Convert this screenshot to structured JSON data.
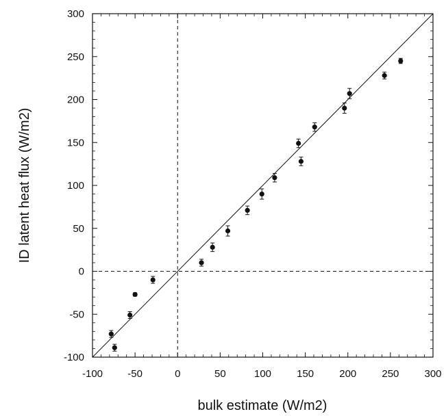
{
  "chart_data": {
    "type": "scatter",
    "title": "",
    "xlabel": "bulk estimate (W/m2)",
    "ylabel": "ID latent heat flux (W/m2)",
    "xlim": [
      -100,
      300
    ],
    "ylim": [
      -100,
      300
    ],
    "x_ticks": [
      -100,
      -50,
      0,
      50,
      100,
      150,
      200,
      250,
      300
    ],
    "y_ticks": [
      -100,
      -50,
      0,
      50,
      100,
      150,
      200,
      250,
      300
    ],
    "x_tick_labels": [
      "-100",
      "-50",
      "0",
      "50",
      "100",
      "150",
      "200",
      "250",
      "300"
    ],
    "y_tick_labels": [
      "-100",
      "-50",
      "0",
      "50",
      "100",
      "150",
      "200",
      "250",
      "300"
    ],
    "grid": false,
    "reference_lines": {
      "identity": "y = x",
      "zero_x": 0,
      "zero_y": 0
    },
    "series": [
      {
        "points": [
          {
            "x": -78,
            "y": -73,
            "err": 4
          },
          {
            "x": -74,
            "y": -89,
            "err": 4
          },
          {
            "x": -56,
            "y": -51,
            "err": 4
          },
          {
            "x": -50,
            "y": -27,
            "err": 2
          },
          {
            "x": -29,
            "y": -10,
            "err": 4
          },
          {
            "x": 28,
            "y": 10,
            "err": 4
          },
          {
            "x": 41,
            "y": 28,
            "err": 5
          },
          {
            "x": 59,
            "y": 47,
            "err": 6
          },
          {
            "x": 82,
            "y": 71,
            "err": 5
          },
          {
            "x": 99,
            "y": 90,
            "err": 6
          },
          {
            "x": 114,
            "y": 109,
            "err": 5
          },
          {
            "x": 142,
            "y": 149,
            "err": 5
          },
          {
            "x": 145,
            "y": 128,
            "err": 5
          },
          {
            "x": 161,
            "y": 168,
            "err": 5
          },
          {
            "x": 196,
            "y": 190,
            "err": 6
          },
          {
            "x": 202,
            "y": 207,
            "err": 6
          },
          {
            "x": 243,
            "y": 228,
            "err": 4
          },
          {
            "x": 262,
            "y": 245,
            "err": 3
          }
        ]
      }
    ]
  },
  "colors": {
    "marker": "#111111",
    "axis": "#111111",
    "background": "#ffffff"
  }
}
